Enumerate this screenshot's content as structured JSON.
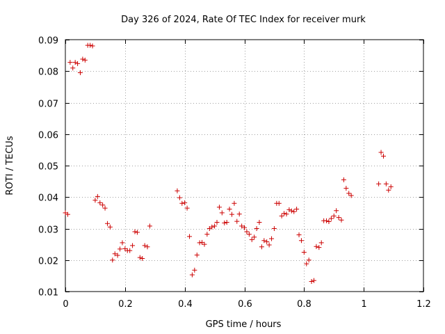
{
  "chart_data": {
    "type": "scatter",
    "title": "Day 326 of 2024, Rate Of TEC Index for receiver murk",
    "xlabel": "GPS time / hours",
    "ylabel": "ROTI / TECUs",
    "xlim": [
      0,
      1.2
    ],
    "ylim": [
      0.01,
      0.09
    ],
    "xticks": [
      0,
      0.2,
      0.4,
      0.6,
      0.8,
      1.0,
      1.2
    ],
    "xtick_labels": [
      "0",
      "0.2",
      "0.4",
      "0.6",
      "0.8",
      "1",
      "1.2"
    ],
    "yticks": [
      0.01,
      0.02,
      0.03,
      0.04,
      0.05,
      0.06,
      0.07,
      0.08,
      0.09
    ],
    "ytick_labels": [
      "0.01",
      "0.02",
      "0.03",
      "0.04",
      "0.05",
      "0.06",
      "0.07",
      "0.08",
      "0.09"
    ],
    "grid": true,
    "marker": "+",
    "color": "#cc0000",
    "series": [
      {
        "name": "ROTI",
        "points": [
          [
            0.0,
            0.035
          ],
          [
            0.008,
            0.0345
          ],
          [
            0.016,
            0.0828
          ],
          [
            0.025,
            0.081
          ],
          [
            0.033,
            0.0828
          ],
          [
            0.041,
            0.0824
          ],
          [
            0.05,
            0.0795
          ],
          [
            0.058,
            0.0838
          ],
          [
            0.066,
            0.0835
          ],
          [
            0.075,
            0.0882
          ],
          [
            0.083,
            0.0882
          ],
          [
            0.091,
            0.088
          ],
          [
            0.1,
            0.039
          ],
          [
            0.108,
            0.0402
          ],
          [
            0.116,
            0.0382
          ],
          [
            0.125,
            0.0375
          ],
          [
            0.133,
            0.0365
          ],
          [
            0.141,
            0.0316
          ],
          [
            0.15,
            0.0305
          ],
          [
            0.158,
            0.02
          ],
          [
            0.166,
            0.022
          ],
          [
            0.175,
            0.0215
          ],
          [
            0.183,
            0.0235
          ],
          [
            0.191,
            0.0255
          ],
          [
            0.2,
            0.0236
          ],
          [
            0.208,
            0.023
          ],
          [
            0.216,
            0.023
          ],
          [
            0.225,
            0.0246
          ],
          [
            0.233,
            0.029
          ],
          [
            0.241,
            0.0288
          ],
          [
            0.25,
            0.0208
          ],
          [
            0.258,
            0.0205
          ],
          [
            0.266,
            0.0246
          ],
          [
            0.275,
            0.0242
          ],
          [
            0.283,
            0.0308
          ],
          [
            0.375,
            0.042
          ],
          [
            0.383,
            0.0398
          ],
          [
            0.391,
            0.038
          ],
          [
            0.4,
            0.0382
          ],
          [
            0.408,
            0.0365
          ],
          [
            0.416,
            0.0275
          ],
          [
            0.425,
            0.0153
          ],
          [
            0.433,
            0.0168
          ],
          [
            0.441,
            0.0216
          ],
          [
            0.45,
            0.0255
          ],
          [
            0.458,
            0.0256
          ],
          [
            0.466,
            0.025
          ],
          [
            0.475,
            0.0282
          ],
          [
            0.483,
            0.03
          ],
          [
            0.491,
            0.0305
          ],
          [
            0.5,
            0.0308
          ],
          [
            0.508,
            0.032
          ],
          [
            0.516,
            0.0368
          ],
          [
            0.525,
            0.035
          ],
          [
            0.533,
            0.0318
          ],
          [
            0.541,
            0.032
          ],
          [
            0.55,
            0.0362
          ],
          [
            0.558,
            0.0345
          ],
          [
            0.566,
            0.038
          ],
          [
            0.575,
            0.0323
          ],
          [
            0.583,
            0.0346
          ],
          [
            0.591,
            0.0308
          ],
          [
            0.6,
            0.0303
          ],
          [
            0.608,
            0.029
          ],
          [
            0.616,
            0.0282
          ],
          [
            0.625,
            0.0265
          ],
          [
            0.633,
            0.0273
          ],
          [
            0.641,
            0.03
          ],
          [
            0.65,
            0.032
          ],
          [
            0.658,
            0.0242
          ],
          [
            0.666,
            0.0262
          ],
          [
            0.675,
            0.0258
          ],
          [
            0.683,
            0.0248
          ],
          [
            0.691,
            0.0268
          ],
          [
            0.7,
            0.03
          ],
          [
            0.708,
            0.038
          ],
          [
            0.716,
            0.038
          ],
          [
            0.725,
            0.034
          ],
          [
            0.733,
            0.0348
          ],
          [
            0.741,
            0.0346
          ],
          [
            0.75,
            0.036
          ],
          [
            0.758,
            0.0356
          ],
          [
            0.766,
            0.0354
          ],
          [
            0.775,
            0.0362
          ],
          [
            0.783,
            0.028
          ],
          [
            0.791,
            0.0262
          ],
          [
            0.8,
            0.0225
          ],
          [
            0.808,
            0.0188
          ],
          [
            0.816,
            0.02
          ],
          [
            0.825,
            0.0132
          ],
          [
            0.833,
            0.0135
          ],
          [
            0.841,
            0.0243
          ],
          [
            0.85,
            0.024
          ],
          [
            0.858,
            0.0255
          ],
          [
            0.866,
            0.0325
          ],
          [
            0.875,
            0.0325
          ],
          [
            0.883,
            0.0322
          ],
          [
            0.891,
            0.0332
          ],
          [
            0.9,
            0.034
          ],
          [
            0.908,
            0.0357
          ],
          [
            0.916,
            0.0335
          ],
          [
            0.925,
            0.0327
          ],
          [
            0.933,
            0.0455
          ],
          [
            0.941,
            0.0428
          ],
          [
            0.95,
            0.0412
          ],
          [
            0.958,
            0.0405
          ],
          [
            1.05,
            0.0442
          ],
          [
            1.058,
            0.0542
          ],
          [
            1.066,
            0.053
          ],
          [
            1.075,
            0.0442
          ],
          [
            1.083,
            0.0422
          ],
          [
            1.091,
            0.0433
          ]
        ]
      }
    ]
  }
}
